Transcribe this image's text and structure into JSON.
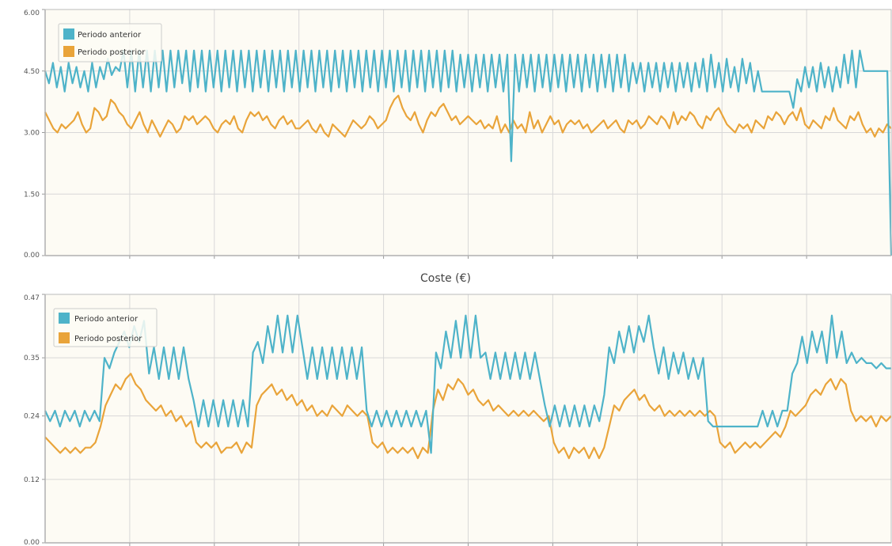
{
  "colors": {
    "anterior": "#4eb3c9",
    "posterior": "#e9a43a",
    "plot_background": "#fdfbf4"
  },
  "chart_data": [
    {
      "type": "line",
      "title": "",
      "xlabel": "",
      "ylabel": "",
      "ylim": [
        0,
        6
      ],
      "yticks": [
        "0.00",
        "1.50",
        "3.00",
        "4.50",
        "6.00"
      ],
      "x_divisions": 10,
      "grid": true,
      "legend_position": "top-left",
      "series": [
        {
          "name": "Periodo anterior",
          "color": "#4eb3c9",
          "values": [
            4.5,
            4.2,
            4.7,
            4.1,
            4.6,
            4.0,
            4.7,
            4.2,
            4.6,
            4.1,
            4.5,
            4.0,
            4.7,
            4.1,
            4.6,
            4.3,
            4.8,
            4.4,
            4.6,
            4.5,
            5.0,
            4.1,
            5.0,
            4.0,
            5.0,
            4.1,
            5.0,
            4.0,
            5.0,
            4.1,
            5.0,
            4.0,
            5.0,
            4.1,
            5.0,
            4.2,
            5.0,
            4.0,
            5.0,
            4.1,
            5.0,
            4.0,
            5.0,
            4.1,
            5.0,
            4.0,
            5.0,
            4.1,
            5.0,
            4.0,
            5.0,
            4.1,
            5.0,
            4.0,
            5.0,
            4.1,
            5.0,
            4.0,
            5.0,
            4.1,
            5.0,
            4.0,
            5.0,
            4.1,
            5.0,
            4.0,
            5.0,
            4.1,
            5.0,
            4.0,
            5.0,
            4.1,
            5.0,
            4.0,
            5.0,
            4.1,
            5.0,
            4.0,
            5.0,
            4.1,
            5.0,
            4.0,
            5.0,
            4.1,
            5.0,
            4.0,
            5.0,
            4.1,
            5.0,
            4.0,
            5.0,
            4.1,
            5.0,
            4.0,
            5.0,
            4.1,
            5.0,
            4.0,
            5.0,
            4.1,
            5.0,
            4.0,
            5.0,
            4.1,
            5.0,
            4.0,
            4.9,
            4.1,
            4.9,
            4.0,
            4.9,
            4.1,
            4.9,
            4.0,
            4.9,
            4.1,
            4.9,
            4.0,
            4.9,
            2.3,
            4.9,
            4.0,
            4.9,
            4.1,
            4.9,
            4.0,
            4.9,
            4.1,
            4.9,
            4.0,
            4.9,
            4.1,
            4.9,
            4.0,
            4.9,
            4.1,
            4.9,
            4.0,
            4.9,
            4.1,
            4.9,
            4.0,
            4.9,
            4.1,
            4.9,
            4.0,
            4.9,
            4.1,
            4.9,
            4.0,
            4.7,
            4.2,
            4.7,
            4.0,
            4.7,
            4.1,
            4.7,
            4.0,
            4.7,
            4.1,
            4.7,
            4.0,
            4.7,
            4.1,
            4.7,
            4.0,
            4.7,
            4.1,
            4.8,
            4.0,
            4.9,
            4.1,
            4.7,
            4.0,
            4.8,
            4.1,
            4.6,
            4.0,
            4.8,
            4.2,
            4.7,
            4.0,
            4.5,
            4.0,
            4.0,
            4.0,
            4.0,
            4.0,
            4.0,
            4.0,
            4.0,
            3.6,
            4.3,
            4.0,
            4.6,
            4.1,
            4.6,
            4.0,
            4.7,
            4.1,
            4.6,
            4.0,
            4.6,
            4.1,
            4.9,
            4.2,
            5.0,
            4.1,
            5.0,
            4.5,
            4.5,
            4.5,
            4.5,
            4.5,
            4.5,
            4.5,
            0.0
          ]
        },
        {
          "name": "Periodo posterior",
          "color": "#e9a43a",
          "values": [
            3.5,
            3.3,
            3.1,
            3.0,
            3.2,
            3.1,
            3.2,
            3.3,
            3.5,
            3.2,
            3.0,
            3.1,
            3.6,
            3.5,
            3.3,
            3.4,
            3.8,
            3.7,
            3.5,
            3.4,
            3.2,
            3.1,
            3.3,
            3.5,
            3.2,
            3.0,
            3.3,
            3.1,
            2.9,
            3.1,
            3.3,
            3.2,
            3.0,
            3.1,
            3.4,
            3.3,
            3.4,
            3.2,
            3.3,
            3.4,
            3.3,
            3.1,
            3.0,
            3.2,
            3.3,
            3.2,
            3.4,
            3.1,
            3.0,
            3.3,
            3.5,
            3.4,
            3.5,
            3.3,
            3.4,
            3.2,
            3.1,
            3.3,
            3.4,
            3.2,
            3.3,
            3.1,
            3.1,
            3.2,
            3.3,
            3.1,
            3.0,
            3.2,
            3.0,
            2.9,
            3.2,
            3.1,
            3.0,
            2.9,
            3.1,
            3.3,
            3.2,
            3.1,
            3.2,
            3.4,
            3.3,
            3.1,
            3.2,
            3.3,
            3.6,
            3.8,
            3.9,
            3.6,
            3.4,
            3.3,
            3.5,
            3.2,
            3.0,
            3.3,
            3.5,
            3.4,
            3.6,
            3.7,
            3.5,
            3.3,
            3.4,
            3.2,
            3.3,
            3.4,
            3.3,
            3.2,
            3.3,
            3.1,
            3.2,
            3.1,
            3.4,
            3.0,
            3.2,
            3.0,
            3.3,
            3.1,
            3.2,
            3.0,
            3.5,
            3.1,
            3.3,
            3.0,
            3.2,
            3.4,
            3.2,
            3.3,
            3.0,
            3.2,
            3.3,
            3.2,
            3.3,
            3.1,
            3.2,
            3.0,
            3.1,
            3.2,
            3.3,
            3.1,
            3.2,
            3.3,
            3.1,
            3.0,
            3.3,
            3.2,
            3.3,
            3.1,
            3.2,
            3.4,
            3.3,
            3.2,
            3.4,
            3.3,
            3.1,
            3.5,
            3.2,
            3.4,
            3.3,
            3.5,
            3.4,
            3.2,
            3.1,
            3.4,
            3.3,
            3.5,
            3.6,
            3.4,
            3.2,
            3.1,
            3.0,
            3.2,
            3.1,
            3.2,
            3.0,
            3.3,
            3.2,
            3.1,
            3.4,
            3.3,
            3.5,
            3.4,
            3.2,
            3.4,
            3.5,
            3.3,
            3.6,
            3.2,
            3.1,
            3.3,
            3.2,
            3.1,
            3.4,
            3.3,
            3.6,
            3.3,
            3.2,
            3.1,
            3.4,
            3.3,
            3.5,
            3.2,
            3.0,
            3.1,
            2.9,
            3.1,
            3.0,
            3.2,
            3.1
          ]
        }
      ]
    },
    {
      "type": "line",
      "title": "Coste (€)",
      "xlabel": "",
      "ylabel": "",
      "ylim": [
        0,
        0.47
      ],
      "yticks_values": [
        0,
        0.12,
        0.24,
        0.35,
        0.47
      ],
      "yticks": [
        "0.00",
        "0.12",
        "0.24",
        "0.35",
        "0.47"
      ],
      "x_divisions": 10,
      "grid": true,
      "legend_position": "top-left",
      "series": [
        {
          "name": "Periodo anterior",
          "color": "#4eb3c9",
          "values": [
            0.25,
            0.23,
            0.25,
            0.22,
            0.25,
            0.23,
            0.25,
            0.22,
            0.25,
            0.23,
            0.25,
            0.23,
            0.35,
            0.33,
            0.36,
            0.38,
            0.4,
            0.37,
            0.41,
            0.38,
            0.42,
            0.32,
            0.37,
            0.31,
            0.37,
            0.31,
            0.37,
            0.31,
            0.37,
            0.31,
            0.27,
            0.22,
            0.27,
            0.22,
            0.27,
            0.22,
            0.27,
            0.22,
            0.27,
            0.22,
            0.27,
            0.22,
            0.36,
            0.38,
            0.34,
            0.41,
            0.36,
            0.43,
            0.36,
            0.43,
            0.36,
            0.43,
            0.37,
            0.31,
            0.37,
            0.31,
            0.37,
            0.31,
            0.37,
            0.31,
            0.37,
            0.31,
            0.37,
            0.31,
            0.37,
            0.25,
            0.22,
            0.25,
            0.22,
            0.25,
            0.22,
            0.25,
            0.22,
            0.25,
            0.22,
            0.25,
            0.22,
            0.25,
            0.17,
            0.36,
            0.33,
            0.4,
            0.35,
            0.42,
            0.35,
            0.43,
            0.35,
            0.43,
            0.35,
            0.36,
            0.31,
            0.36,
            0.31,
            0.36,
            0.31,
            0.36,
            0.31,
            0.36,
            0.31,
            0.36,
            0.31,
            0.26,
            0.22,
            0.26,
            0.22,
            0.26,
            0.22,
            0.26,
            0.22,
            0.26,
            0.22,
            0.26,
            0.23,
            0.28,
            0.37,
            0.34,
            0.4,
            0.36,
            0.41,
            0.36,
            0.41,
            0.38,
            0.43,
            0.37,
            0.32,
            0.37,
            0.31,
            0.36,
            0.32,
            0.36,
            0.31,
            0.35,
            0.31,
            0.35,
            0.23,
            0.22,
            0.22,
            0.22,
            0.22,
            0.22,
            0.22,
            0.22,
            0.22,
            0.22,
            0.22,
            0.25,
            0.22,
            0.25,
            0.22,
            0.25,
            0.25,
            0.32,
            0.34,
            0.39,
            0.34,
            0.4,
            0.36,
            0.4,
            0.34,
            0.43,
            0.35,
            0.4,
            0.34,
            0.36,
            0.34,
            0.35,
            0.34,
            0.34,
            0.33,
            0.34,
            0.33,
            0.33
          ]
        },
        {
          "name": "Periodo posterior",
          "color": "#e9a43a",
          "values": [
            0.2,
            0.19,
            0.18,
            0.17,
            0.18,
            0.17,
            0.18,
            0.17,
            0.18,
            0.18,
            0.19,
            0.22,
            0.26,
            0.28,
            0.3,
            0.29,
            0.31,
            0.32,
            0.3,
            0.29,
            0.27,
            0.26,
            0.25,
            0.26,
            0.24,
            0.25,
            0.23,
            0.24,
            0.22,
            0.23,
            0.19,
            0.18,
            0.19,
            0.18,
            0.19,
            0.17,
            0.18,
            0.18,
            0.19,
            0.17,
            0.19,
            0.18,
            0.26,
            0.28,
            0.29,
            0.3,
            0.28,
            0.29,
            0.27,
            0.28,
            0.26,
            0.27,
            0.25,
            0.26,
            0.24,
            0.25,
            0.24,
            0.26,
            0.25,
            0.24,
            0.26,
            0.25,
            0.24,
            0.25,
            0.24,
            0.19,
            0.18,
            0.19,
            0.17,
            0.18,
            0.17,
            0.18,
            0.17,
            0.18,
            0.16,
            0.18,
            0.17,
            0.25,
            0.29,
            0.27,
            0.3,
            0.29,
            0.31,
            0.3,
            0.28,
            0.29,
            0.27,
            0.26,
            0.27,
            0.25,
            0.26,
            0.25,
            0.24,
            0.25,
            0.24,
            0.25,
            0.24,
            0.25,
            0.24,
            0.23,
            0.24,
            0.19,
            0.17,
            0.18,
            0.16,
            0.18,
            0.17,
            0.18,
            0.16,
            0.18,
            0.16,
            0.18,
            0.22,
            0.26,
            0.25,
            0.27,
            0.28,
            0.29,
            0.27,
            0.28,
            0.26,
            0.25,
            0.26,
            0.24,
            0.25,
            0.24,
            0.25,
            0.24,
            0.25,
            0.24,
            0.25,
            0.24,
            0.25,
            0.24,
            0.19,
            0.18,
            0.19,
            0.17,
            0.18,
            0.19,
            0.18,
            0.19,
            0.18,
            0.19,
            0.2,
            0.21,
            0.2,
            0.22,
            0.25,
            0.24,
            0.25,
            0.26,
            0.28,
            0.29,
            0.28,
            0.3,
            0.31,
            0.29,
            0.31,
            0.3,
            0.25,
            0.23,
            0.24,
            0.23,
            0.24,
            0.22,
            0.24,
            0.23,
            0.24
          ]
        }
      ]
    }
  ]
}
